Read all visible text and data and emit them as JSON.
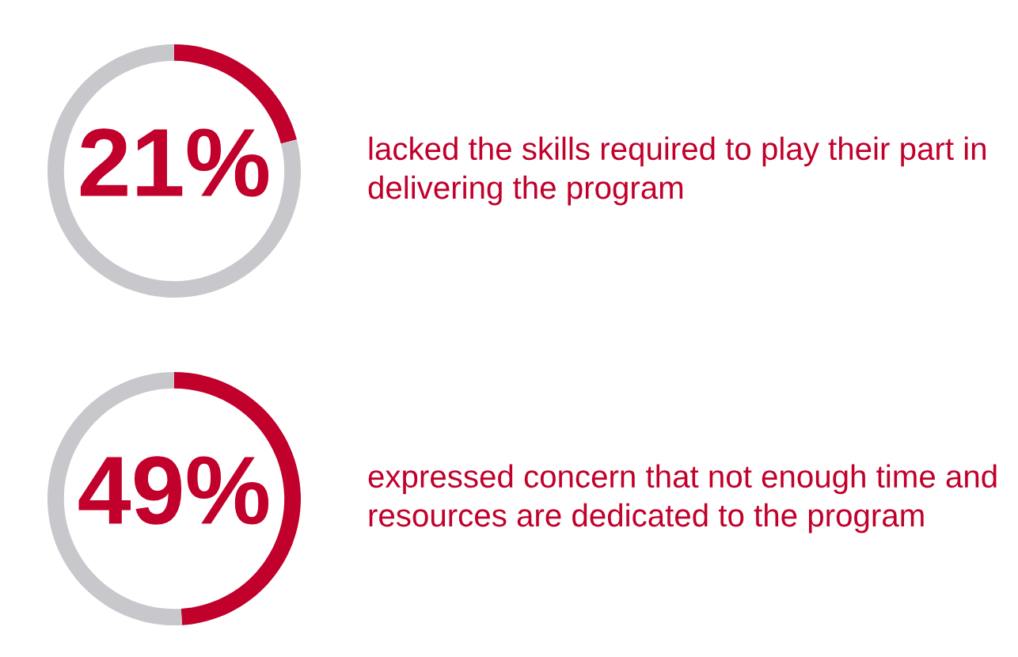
{
  "chart_data": [
    {
      "type": "donut",
      "categories": [
        null,
        null
      ],
      "values": [
        21,
        79
      ],
      "colors": [
        "#c1002b",
        "#c8c8cc"
      ],
      "value_labels": [
        "21%",
        null
      ],
      "annotations": [
        "lacked the skills required to play their part in delivering the program"
      ]
    },
    {
      "type": "donut",
      "categories": [
        null,
        null
      ],
      "values": [
        49,
        51
      ],
      "colors": [
        "#c1002b",
        "#c8c8cc"
      ],
      "value_labels": [
        "49%",
        null
      ],
      "annotations": [
        "expressed concern that not enough time and resources are dedicated to the program"
      ]
    }
  ]
}
